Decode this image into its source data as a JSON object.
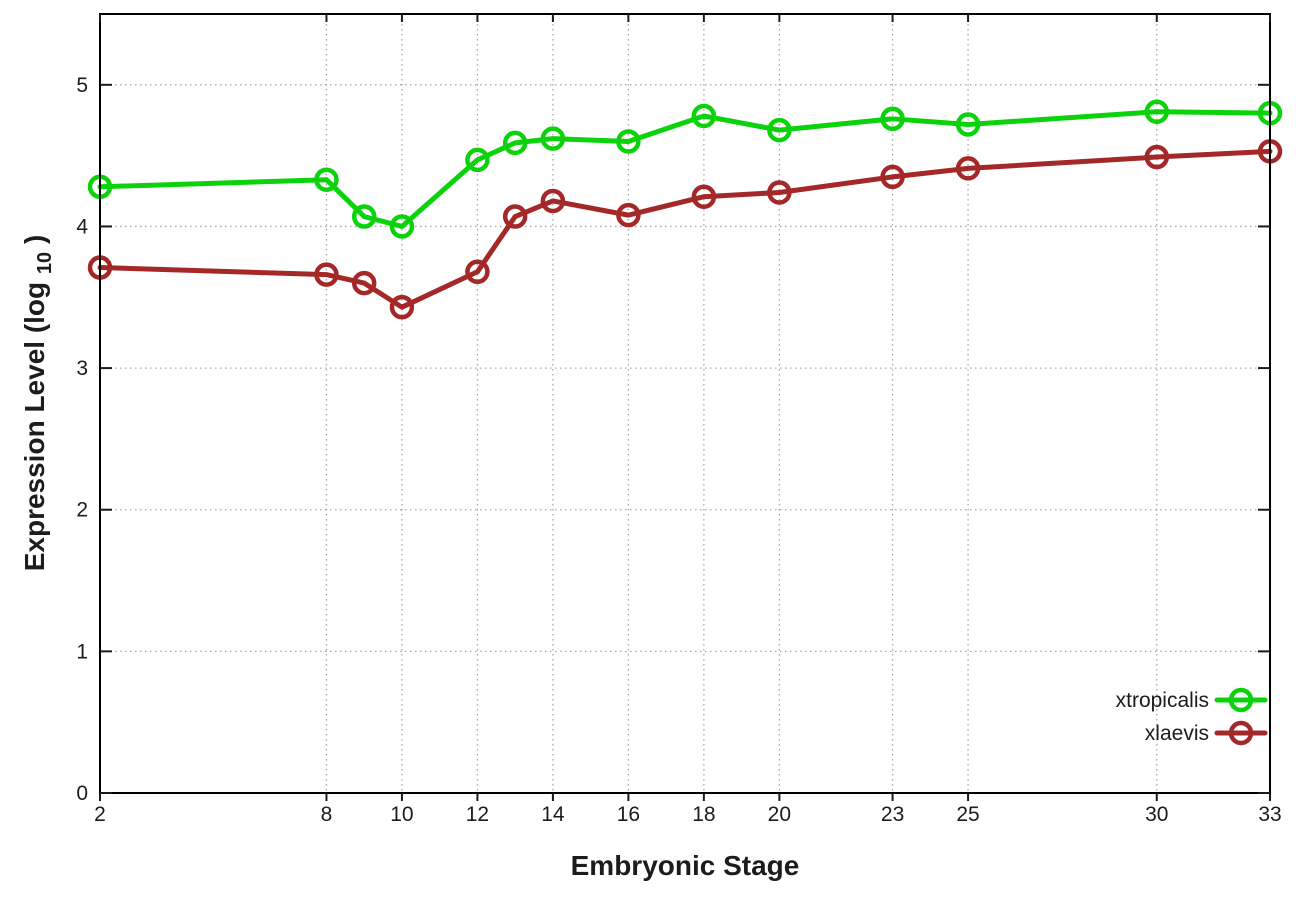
{
  "figure": {
    "background": "#ffffff",
    "border_color": "#000000",
    "grid_color": "#a9a9a9",
    "tick_color": "#1a1a1a",
    "text_color": "#1c1c1c"
  },
  "chart_data": {
    "type": "line",
    "title": "",
    "xlabel": "Embryonic Stage",
    "ylabel": {
      "pre": "Expression Level (log",
      "sub": "10",
      "post": ")"
    },
    "x": [
      2,
      8,
      9,
      10,
      12,
      13,
      14,
      16,
      18,
      20,
      23,
      25,
      30,
      33
    ],
    "x_tick_values": [
      2,
      8,
      10,
      12,
      14,
      16,
      18,
      20,
      23,
      25,
      30,
      33
    ],
    "x_tick_labels": [
      "2",
      "8",
      "10",
      "12",
      "14",
      "16",
      "18",
      "20",
      "23",
      "25",
      "30",
      "33"
    ],
    "y_tick_values": [
      0,
      1,
      2,
      3,
      4,
      5
    ],
    "y_tick_labels": [
      "0",
      "1",
      "2",
      "3",
      "4",
      "5"
    ],
    "xlim": [
      2,
      33
    ],
    "ylim": [
      0,
      5.5
    ],
    "grid": true,
    "legend_position": "bottom-right",
    "series": [
      {
        "name": "xtropicalis",
        "color": "#0cd20c",
        "values": [
          4.28,
          4.33,
          4.07,
          4.0,
          4.47,
          4.59,
          4.62,
          4.6,
          4.78,
          4.68,
          4.76,
          4.72,
          4.81,
          4.8
        ]
      },
      {
        "name": "xlaevis",
        "color": "#a52828",
        "values": [
          3.71,
          3.66,
          3.6,
          3.43,
          3.68,
          4.07,
          4.18,
          4.08,
          4.21,
          4.24,
          4.35,
          4.41,
          4.49,
          4.53
        ]
      }
    ]
  }
}
